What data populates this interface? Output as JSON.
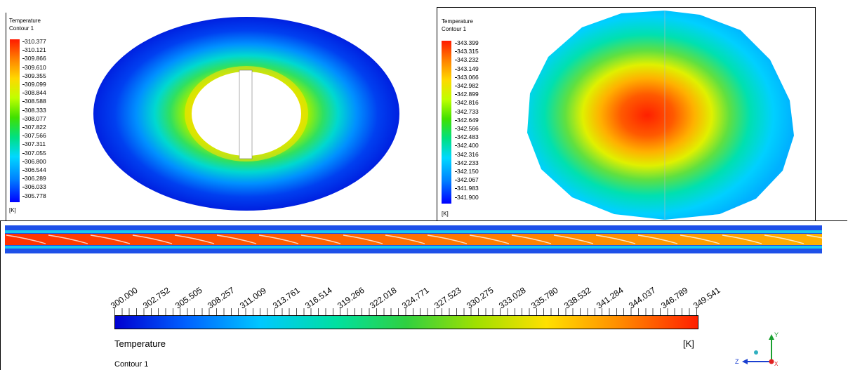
{
  "panel1": {
    "legend_title": "Temperature",
    "legend_subtitle": "Contour 1",
    "ticks": [
      "310.377",
      "310.121",
      "309.866",
      "309.610",
      "309.355",
      "309.099",
      "308.844",
      "308.588",
      "308.333",
      "308.077",
      "307.822",
      "307.566",
      "307.311",
      "307.055",
      "306.800",
      "306.544",
      "306.289",
      "306.033",
      "305.778"
    ],
    "unit": "[K]"
  },
  "panel2": {
    "legend_title": "Temperature",
    "legend_subtitle": "Contour 1",
    "ticks": [
      "343.399",
      "343.315",
      "343.232",
      "343.149",
      "343.066",
      "342.982",
      "342.899",
      "342.816",
      "342.733",
      "342.649",
      "342.566",
      "342.483",
      "342.400",
      "342.316",
      "342.233",
      "342.150",
      "342.067",
      "341.983",
      "341.900"
    ],
    "unit": "[K]"
  },
  "panel3": {
    "ticks": [
      "300.000",
      "302.752",
      "305.505",
      "308.257",
      "311.009",
      "313.761",
      "316.514",
      "319.266",
      "322.018",
      "324.771",
      "327.523",
      "330.275",
      "333.028",
      "335.780",
      "338.532",
      "341.284",
      "344.037",
      "346.789",
      "349.541"
    ],
    "legend_title": "Temperature",
    "unit": "[K]",
    "legend_subtitle": "Contour 1",
    "axis_labels": [
      "Y",
      "Z",
      "X"
    ]
  },
  "icons": [
    "temperature-colorbar-icon",
    "coordinate-axes-icon"
  ]
}
